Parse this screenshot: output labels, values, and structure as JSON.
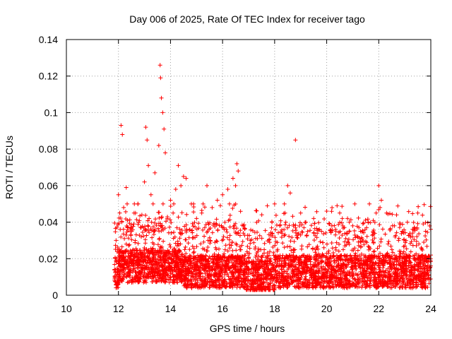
{
  "chart_data": {
    "type": "scatter",
    "title": "Day 006 of 2025, Rate Of TEC Index for receiver tago",
    "xlabel": "GPS time / hours",
    "ylabel": "ROTI / TECUs",
    "xlim": [
      10,
      24
    ],
    "ylim": [
      0,
      0.14
    ],
    "x_ticks": [
      "10",
      "12",
      "14",
      "16",
      "18",
      "20",
      "22",
      "24"
    ],
    "y_ticks": [
      "0",
      "0.02",
      "0.04",
      "0.06",
      "0.08",
      "0.1",
      "0.12",
      "0.14"
    ],
    "grid": true,
    "marker": "+",
    "color": "#ff0000",
    "series": [
      {
        "name": "ROTI",
        "x": [
          12.0,
          12.05,
          12.1,
          12.15,
          12.2,
          12.3,
          12.35,
          12.45,
          12.6,
          12.75,
          12.9,
          13.0,
          13.05,
          13.1,
          13.15,
          13.25,
          13.4,
          13.55,
          13.6,
          13.62,
          13.65,
          13.7,
          13.75,
          13.8,
          14.0,
          14.1,
          14.2,
          14.3,
          14.4,
          14.5,
          14.6,
          14.8,
          15.0,
          15.2,
          15.4,
          15.6,
          15.8,
          16.0,
          16.2,
          16.4,
          16.5,
          16.55,
          16.6,
          16.8,
          17.0,
          17.3,
          17.6,
          17.9,
          18.0,
          18.2,
          18.4,
          18.5,
          18.6,
          18.8,
          19.0,
          19.2,
          19.5,
          19.8,
          20.0,
          20.2,
          20.4,
          20.5,
          20.6,
          20.8,
          21.0,
          21.3,
          21.6,
          21.9,
          22.0,
          22.05,
          22.1,
          22.3,
          22.6,
          22.9,
          23.1,
          23.3,
          23.5,
          23.8,
          24.0
        ],
        "y": [
          0.055,
          0.045,
          0.093,
          0.088,
          0.048,
          0.059,
          0.041,
          0.035,
          0.045,
          0.05,
          0.044,
          0.062,
          0.092,
          0.085,
          0.071,
          0.055,
          0.067,
          0.082,
          0.126,
          0.119,
          0.108,
          0.1,
          0.091,
          0.078,
          0.052,
          0.045,
          0.058,
          0.071,
          0.06,
          0.065,
          0.064,
          0.05,
          0.042,
          0.045,
          0.06,
          0.048,
          0.052,
          0.055,
          0.058,
          0.064,
          0.06,
          0.072,
          0.068,
          0.038,
          0.02,
          0.022,
          0.025,
          0.04,
          0.05,
          0.038,
          0.045,
          0.06,
          0.056,
          0.085,
          0.045,
          0.04,
          0.042,
          0.035,
          0.046,
          0.038,
          0.049,
          0.045,
          0.042,
          0.042,
          0.038,
          0.035,
          0.04,
          0.045,
          0.06,
          0.048,
          0.052,
          0.045,
          0.038,
          0.035,
          0.04,
          0.034,
          0.045,
          0.035,
          0.022
        ],
        "note": "Dense cloud of observations (roughly 0.003-0.03 TECU) spans 11.85-24 h; listed points are the visible peaks."
      }
    ]
  }
}
